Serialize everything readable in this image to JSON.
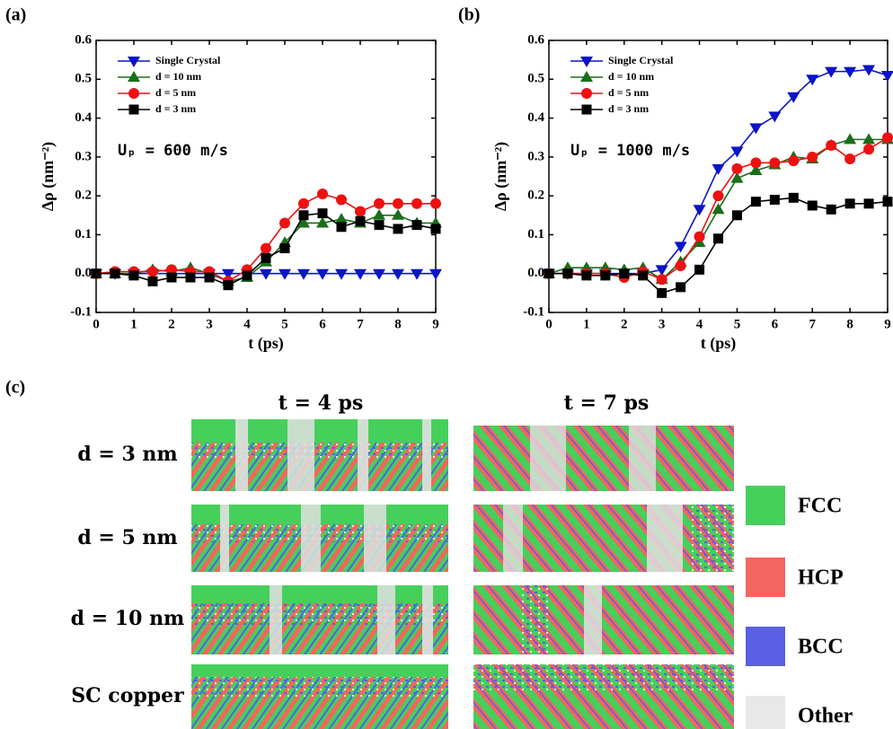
{
  "chart_data": [
    {
      "type": "line",
      "panel_label": "(a)",
      "xlabel": "t (ps)",
      "ylabel": "Δρ (nm⁻²)",
      "annotation": "Uₚ = 600 m/s",
      "x": [
        0,
        0.5,
        1,
        1.5,
        2,
        2.5,
        3,
        3.5,
        4,
        4.5,
        5,
        5.5,
        6,
        6.5,
        7,
        7.5,
        8,
        8.5,
        9
      ],
      "xlim": [
        0,
        9
      ],
      "xticks": [
        0,
        1,
        2,
        3,
        4,
        5,
        6,
        7,
        8,
        9
      ],
      "ylim": [
        -0.1,
        0.6
      ],
      "yticks": [
        -0.1,
        {
          "value": 0,
          "label": "0.0"
        },
        0.1,
        0.2,
        0.3,
        0.4,
        0.5,
        0.6
      ],
      "series": [
        {
          "name": "Single Crystal",
          "color": "#0a14c8",
          "marker": "triangle-down",
          "values": [
            0,
            0,
            0,
            0,
            0,
            0,
            0,
            0,
            0,
            0,
            0,
            0,
            0,
            0,
            0,
            0,
            0,
            0,
            0
          ]
        },
        {
          "name": "d = 10 nm",
          "color": "#1a6e1a",
          "marker": "triangle-up",
          "values": [
            0,
            0,
            0,
            0.01,
            0.005,
            0.015,
            0,
            -0.02,
            -0.01,
            0.03,
            0.08,
            0.13,
            0.13,
            0.14,
            0.13,
            0.15,
            0.15,
            0.13,
            0.13
          ]
        },
        {
          "name": "d = 5 nm",
          "color": "#ee1111",
          "marker": "circle",
          "values": [
            0,
            0.005,
            0.005,
            0.005,
            0.01,
            0.005,
            0.005,
            -0.02,
            0.01,
            0.065,
            0.13,
            0.18,
            0.205,
            0.19,
            0.16,
            0.18,
            0.18,
            0.18,
            0.18
          ]
        },
        {
          "name": "d = 3 nm",
          "color": "#000000",
          "marker": "square",
          "values": [
            0,
            0,
            -0.005,
            -0.02,
            -0.01,
            -0.01,
            -0.01,
            -0.03,
            -0.005,
            0.04,
            0.065,
            0.15,
            0.155,
            0.12,
            0.135,
            0.125,
            0.115,
            0.125,
            0.115
          ]
        }
      ]
    },
    {
      "type": "line",
      "panel_label": "(b)",
      "xlabel": "t (ps)",
      "ylabel": "Δρ (nm⁻²)",
      "annotation": "Uₚ = 1000 m/s",
      "x": [
        0,
        0.5,
        1,
        1.5,
        2,
        2.5,
        3,
        3.5,
        4,
        4.5,
        5,
        5.5,
        6,
        6.5,
        7,
        7.5,
        8,
        8.5,
        9
      ],
      "xlim": [
        0,
        9
      ],
      "xticks": [
        0,
        1,
        2,
        3,
        4,
        5,
        6,
        7,
        8,
        9
      ],
      "ylim": [
        -0.1,
        0.6
      ],
      "yticks": [
        -0.1,
        {
          "value": 0,
          "label": "0.0"
        },
        0.1,
        0.2,
        0.3,
        0.4,
        0.5,
        0.6
      ],
      "series": [
        {
          "name": "Single Crystal",
          "color": "#0a14c8",
          "marker": "triangle-down",
          "values": [
            0,
            0,
            0,
            0,
            0,
            0,
            0.01,
            0.07,
            0.165,
            0.27,
            0.315,
            0.375,
            0.405,
            0.455,
            0.5,
            0.52,
            0.52,
            0.525,
            0.51
          ]
        },
        {
          "name": "d = 10 nm",
          "color": "#1a6e1a",
          "marker": "triangle-up",
          "values": [
            0,
            0.015,
            0.015,
            0.015,
            0.01,
            0.015,
            -0.015,
            0.03,
            0.08,
            0.165,
            0.245,
            0.265,
            0.28,
            0.3,
            0.295,
            0.33,
            0.345,
            0.345,
            0.345
          ]
        },
        {
          "name": "d = 5 nm",
          "color": "#ee1111",
          "marker": "circle",
          "values": [
            0,
            0,
            0,
            0,
            -0.01,
            0.005,
            -0.015,
            0.02,
            0.095,
            0.2,
            0.27,
            0.285,
            0.285,
            0.29,
            0.3,
            0.33,
            0.295,
            0.32,
            0.35
          ]
        },
        {
          "name": "d = 3 nm",
          "color": "#000000",
          "marker": "square",
          "values": [
            0,
            0,
            -0.005,
            -0.005,
            0,
            -0.005,
            -0.05,
            -0.035,
            0.01,
            0.09,
            0.15,
            0.185,
            0.19,
            0.195,
            0.175,
            0.165,
            0.18,
            0.18,
            0.185
          ]
        }
      ]
    }
  ],
  "panel_c": {
    "label": "(c)",
    "columns": [
      "t = 4 ps",
      "t = 7 ps"
    ],
    "rows": [
      "d = 3 nm",
      "d = 5 nm",
      "d = 10 nm",
      "SC copper"
    ],
    "legend": [
      {
        "name": "FCC",
        "color": "#45d05b"
      },
      {
        "name": "HCP",
        "color": "#f2665f"
      },
      {
        "name": "BCC",
        "color": "#5a5fe3"
      },
      {
        "name": "Other",
        "color": "#e8e8e8"
      }
    ]
  }
}
